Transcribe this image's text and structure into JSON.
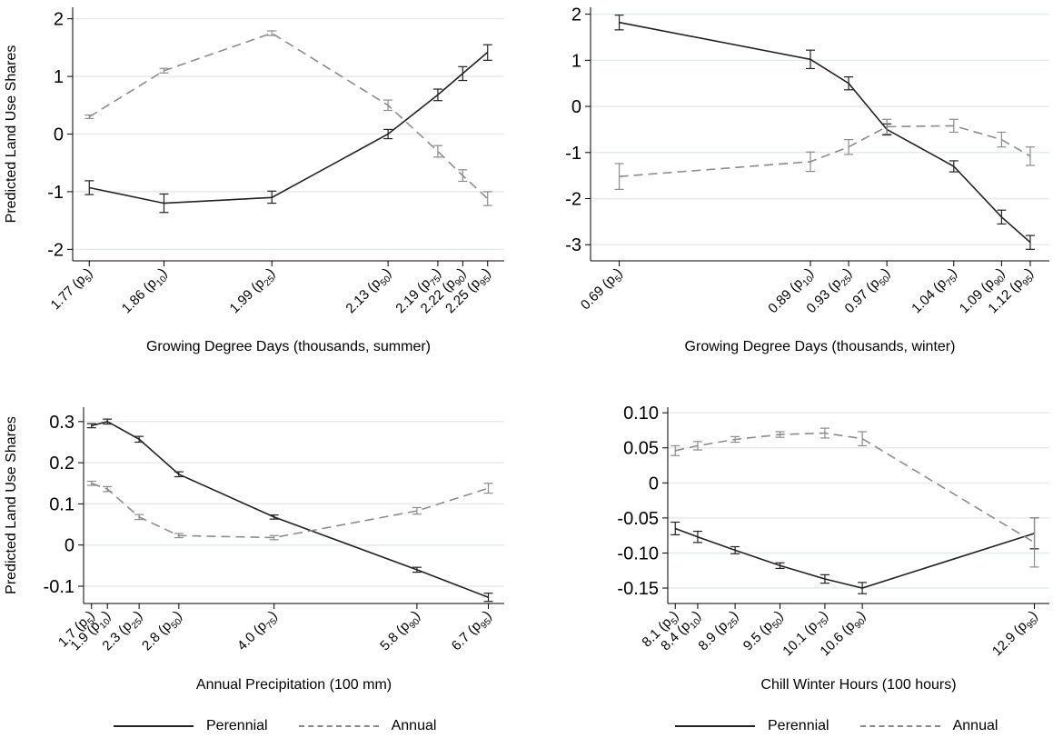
{
  "legend": {
    "perennial": "Perennial",
    "annual": "Annual"
  },
  "colors": {
    "perennial": "#222222",
    "annual": "#8c8c8c",
    "grid": "#e6ece8",
    "axis": "#000000"
  },
  "chart_data": [
    {
      "type": "line",
      "xlabel": "Growing Degree Days (thousands, summer)",
      "ylabel": "Predicted Land Use Shares",
      "x": [
        1.77,
        1.86,
        1.99,
        2.13,
        2.19,
        2.22,
        2.25
      ],
      "xtick_labels": [
        {
          "v": "1.77",
          "p": "5"
        },
        {
          "v": "1.86",
          "p": "10"
        },
        {
          "v": "1.99",
          "p": "25"
        },
        {
          "v": "2.13",
          "p": "50"
        },
        {
          "v": "2.19",
          "p": "75"
        },
        {
          "v": "2.22",
          "p": "90"
        },
        {
          "v": "2.25",
          "p": "95"
        }
      ],
      "yticks": [
        2,
        1,
        0,
        -1,
        -2
      ],
      "ytick_labels": [
        "2",
        "1",
        "0",
        "-1",
        "-2"
      ],
      "ylim": [
        -2.2,
        2.2
      ],
      "grid": true,
      "series": [
        {
          "name": "Perennial",
          "values": [
            -0.93,
            -1.2,
            -1.1,
            0.0,
            0.68,
            1.05,
            1.42
          ],
          "ci": [
            [
              -1.05,
              -0.81
            ],
            [
              -1.36,
              -1.04
            ],
            [
              -1.2,
              -0.99
            ],
            [
              -0.08,
              0.08
            ],
            [
              0.58,
              0.78
            ],
            [
              0.93,
              1.17
            ],
            [
              1.28,
              1.55
            ]
          ]
        },
        {
          "name": "Annual",
          "values": [
            0.3,
            1.1,
            1.75,
            0.5,
            -0.3,
            -0.72,
            -1.12
          ],
          "ci": [
            [
              0.27,
              0.33
            ],
            [
              1.06,
              1.14
            ],
            [
              1.71,
              1.79
            ],
            [
              0.41,
              0.59
            ],
            [
              -0.4,
              -0.2
            ],
            [
              -0.82,
              -0.62
            ],
            [
              -1.24,
              -1.0
            ]
          ]
        }
      ]
    },
    {
      "type": "line",
      "xlabel": "Growing Degree Days (thousands, winter)",
      "ylabel": "",
      "x": [
        0.69,
        0.89,
        0.93,
        0.97,
        1.04,
        1.09,
        1.12
      ],
      "xtick_labels": [
        {
          "v": "0.69",
          "p": "5"
        },
        {
          "v": "0.89",
          "p": "10"
        },
        {
          "v": "0.93",
          "p": "25"
        },
        {
          "v": "0.97",
          "p": "50"
        },
        {
          "v": "1.04",
          "p": "75"
        },
        {
          "v": "1.09",
          "p": "90"
        },
        {
          "v": "1.12",
          "p": "95"
        }
      ],
      "yticks": [
        2,
        1,
        0,
        -1,
        -2,
        -3
      ],
      "ytick_labels": [
        "2",
        "1",
        "0",
        "-1",
        "-2",
        "-3"
      ],
      "ylim": [
        -3.35,
        2.15
      ],
      "grid": true,
      "series": [
        {
          "name": "Perennial",
          "values": [
            1.82,
            1.02,
            0.5,
            -0.5,
            -1.3,
            -2.4,
            -2.95
          ],
          "ci": [
            [
              1.66,
              1.98
            ],
            [
              0.82,
              1.22
            ],
            [
              0.36,
              0.64
            ],
            [
              -0.62,
              -0.38
            ],
            [
              -1.42,
              -1.18
            ],
            [
              -2.55,
              -2.25
            ],
            [
              -3.1,
              -2.8
            ]
          ]
        },
        {
          "name": "Annual",
          "values": [
            -1.52,
            -1.2,
            -0.88,
            -0.44,
            -0.42,
            -0.72,
            -1.08
          ],
          "ci": [
            [
              -1.8,
              -1.24
            ],
            [
              -1.41,
              -0.99
            ],
            [
              -1.04,
              -0.72
            ],
            [
              -0.6,
              -0.28
            ],
            [
              -0.56,
              -0.28
            ],
            [
              -0.88,
              -0.56
            ],
            [
              -1.28,
              -0.88
            ]
          ]
        }
      ]
    },
    {
      "type": "line",
      "xlabel": "Annual Precipitation (100 mm)",
      "ylabel": "Predicted Land Use Shares",
      "x": [
        1.7,
        1.9,
        2.3,
        2.8,
        4.0,
        5.8,
        6.7
      ],
      "xtick_labels": [
        {
          "v": "1.7",
          "p": "5"
        },
        {
          "v": "1.9",
          "p": "10"
        },
        {
          "v": "2.3",
          "p": "25"
        },
        {
          "v": "2.8",
          "p": "50"
        },
        {
          "v": "4.0",
          "p": "75"
        },
        {
          "v": "5.8",
          "p": "90"
        },
        {
          "v": "6.7",
          "p": "95"
        }
      ],
      "yticks": [
        0.3,
        0.2,
        0.1,
        0,
        -0.1
      ],
      "ytick_labels": [
        "0.3",
        "0.2",
        "0.1",
        "0",
        "-0.1"
      ],
      "ylim": [
        -0.142,
        0.335
      ],
      "grid": true,
      "series": [
        {
          "name": "Perennial",
          "values": [
            0.29,
            0.3,
            0.257,
            0.172,
            0.068,
            -0.06,
            -0.127
          ],
          "ci": [
            [
              0.285,
              0.295
            ],
            [
              0.294,
              0.306
            ],
            [
              0.25,
              0.264
            ],
            [
              0.166,
              0.178
            ],
            [
              0.063,
              0.073
            ],
            [
              -0.066,
              -0.054
            ],
            [
              -0.137,
              -0.117
            ]
          ]
        },
        {
          "name": "Annual",
          "values": [
            0.15,
            0.136,
            0.068,
            0.023,
            0.018,
            0.083,
            0.138
          ],
          "ci": [
            [
              0.145,
              0.155
            ],
            [
              0.13,
              0.142
            ],
            [
              0.062,
              0.074
            ],
            [
              0.018,
              0.028
            ],
            [
              0.013,
              0.023
            ],
            [
              0.075,
              0.091
            ],
            [
              0.126,
              0.15
            ]
          ]
        }
      ]
    },
    {
      "type": "line",
      "xlabel": "Chill Winter Hours (100 hours)",
      "ylabel": "",
      "x": [
        8.1,
        8.4,
        8.9,
        9.5,
        10.1,
        10.6,
        12.9
      ],
      "xtick_labels": [
        {
          "v": "8.1",
          "p": "5"
        },
        {
          "v": "8.4",
          "p": "10"
        },
        {
          "v": "8.9",
          "p": "25"
        },
        {
          "v": "9.5",
          "p": "50"
        },
        {
          "v": "10.1",
          "p": "75"
        },
        {
          "v": "10.6",
          "p": "90"
        },
        {
          "v": "12.9",
          "p": "95"
        }
      ],
      "yticks": [
        0.1,
        0.05,
        0,
        -0.05,
        -0.1,
        -0.15
      ],
      "ytick_labels": [
        "0.10",
        "0.05",
        "0",
        "-0.05",
        "-0.10",
        "-0.15"
      ],
      "ylim": [
        -0.172,
        0.108
      ],
      "grid": true,
      "series": [
        {
          "name": "Perennial",
          "values": [
            -0.065,
            -0.077,
            -0.096,
            -0.118,
            -0.137,
            -0.15,
            -0.072
          ],
          "ci": [
            [
              -0.074,
              -0.056
            ],
            [
              -0.085,
              -0.069
            ],
            [
              -0.101,
              -0.091
            ],
            [
              -0.122,
              -0.114
            ],
            [
              -0.143,
              -0.131
            ],
            [
              -0.158,
              -0.142
            ],
            [
              -0.094,
              -0.05
            ]
          ]
        },
        {
          "name": "Annual",
          "values": [
            0.046,
            0.053,
            0.062,
            0.069,
            0.071,
            0.063,
            -0.085
          ],
          "ci": [
            [
              0.039,
              0.053
            ],
            [
              0.047,
              0.059
            ],
            [
              0.058,
              0.066
            ],
            [
              0.065,
              0.073
            ],
            [
              0.064,
              0.078
            ],
            [
              0.053,
              0.073
            ],
            [
              -0.12,
              -0.05
            ]
          ]
        }
      ]
    }
  ]
}
